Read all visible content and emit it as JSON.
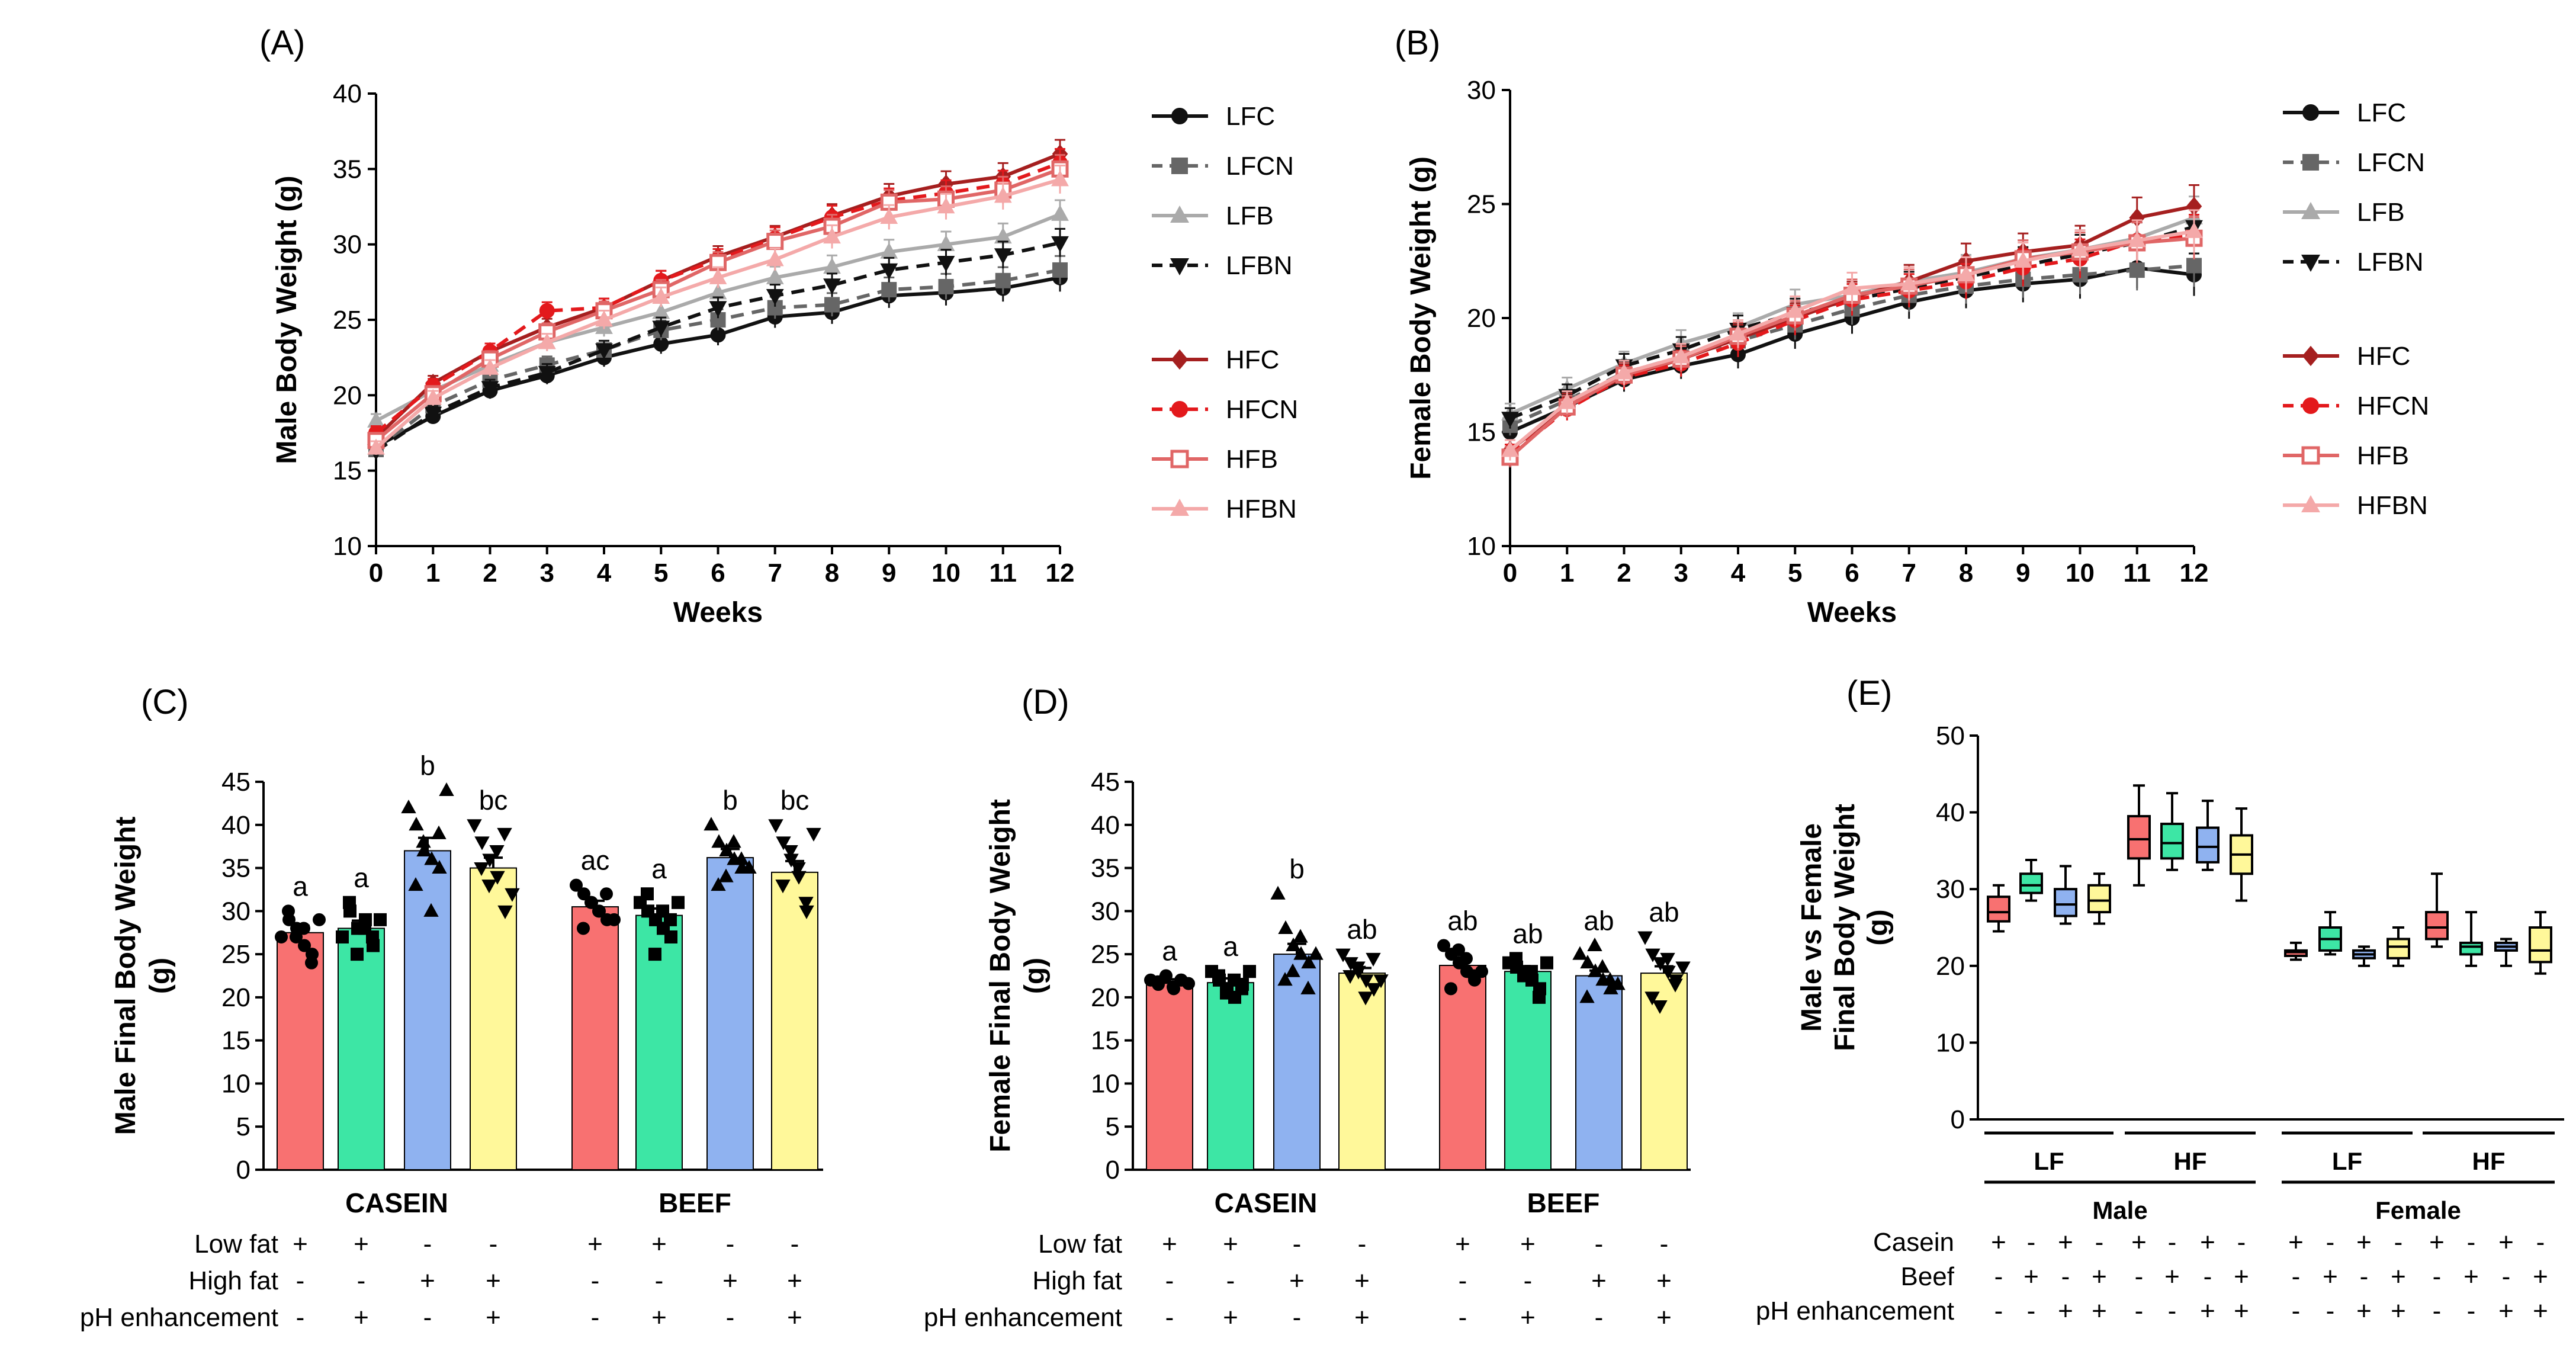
{
  "chart_data": [
    {
      "panel": "(A)",
      "type": "line",
      "ylabel": "Male Body Weight (g)",
      "xlabel": "Weeks",
      "ylim": [
        10,
        40
      ],
      "yticks": [
        10,
        15,
        20,
        25,
        30,
        35,
        40
      ],
      "x": [
        0,
        1,
        2,
        3,
        4,
        5,
        6,
        7,
        8,
        9,
        10,
        11,
        12
      ],
      "series": [
        {
          "name": "LFC",
          "color": "#111111",
          "dash": "solid",
          "marker": "circle",
          "values": [
            16.6,
            18.6,
            20.3,
            21.3,
            22.5,
            23.4,
            24.0,
            25.2,
            25.5,
            26.6,
            26.8,
            27.1,
            27.8
          ]
        },
        {
          "name": "LFCN",
          "color": "#666666",
          "dash": "dashed",
          "marker": "square",
          "values": [
            16.4,
            19.3,
            21.0,
            22.0,
            23.0,
            24.3,
            25.0,
            25.8,
            26.0,
            27.0,
            27.2,
            27.6,
            28.3
          ]
        },
        {
          "name": "LFB",
          "color": "#aaaaaa",
          "dash": "solid",
          "marker": "triangle",
          "values": [
            18.3,
            20.3,
            22.0,
            23.5,
            24.5,
            25.5,
            26.8,
            27.8,
            28.5,
            29.5,
            30.0,
            30.5,
            32.0
          ]
        },
        {
          "name": "LFBN",
          "color": "#111111",
          "dash": "dashed",
          "marker": "tri-down",
          "values": [
            16.3,
            18.8,
            20.5,
            21.5,
            23.0,
            24.5,
            25.8,
            26.6,
            27.3,
            28.3,
            28.8,
            29.3,
            30.1
          ]
        },
        {
          "name": "HFC",
          "color": "#a51f1f",
          "dash": "solid",
          "marker": "diamond",
          "values": [
            17.2,
            20.8,
            22.9,
            24.5,
            25.8,
            27.6,
            29.2,
            30.5,
            31.9,
            33.2,
            34.0,
            34.5,
            36.0
          ]
        },
        {
          "name": "HFCN",
          "color": "#e3191c",
          "dash": "dashed",
          "marker": "circle",
          "values": [
            17.5,
            20.6,
            22.9,
            25.6,
            25.8,
            27.6,
            29.0,
            30.4,
            31.8,
            32.9,
            33.4,
            34.0,
            35.4
          ]
        },
        {
          "name": "HFB",
          "color": "#e06666",
          "dash": "solid",
          "marker": "square-open",
          "values": [
            17.0,
            20.1,
            22.4,
            24.2,
            25.6,
            27.0,
            28.8,
            30.2,
            31.2,
            32.8,
            33.0,
            33.6,
            35.0
          ]
        },
        {
          "name": "HFBN",
          "color": "#f4a9a9",
          "dash": "solid",
          "marker": "triangle",
          "values": [
            16.5,
            19.8,
            21.8,
            23.5,
            25.0,
            26.5,
            27.8,
            29.0,
            30.5,
            31.8,
            32.5,
            33.2,
            34.3
          ]
        }
      ]
    },
    {
      "panel": "(B)",
      "type": "line",
      "ylabel": "Female Body Weight (g)",
      "xlabel": "Weeks",
      "ylim": [
        10,
        30
      ],
      "yticks": [
        10,
        15,
        20,
        25,
        30
      ],
      "x": [
        0,
        1,
        2,
        3,
        4,
        5,
        6,
        7,
        8,
        9,
        10,
        11,
        12
      ],
      "series": [
        {
          "name": "LFC",
          "color": "#111111",
          "dash": "solid",
          "marker": "circle",
          "values": [
            15.0,
            16.1,
            17.3,
            17.9,
            18.4,
            19.3,
            20.0,
            20.7,
            21.2,
            21.5,
            21.7,
            22.2,
            21.9
          ]
        },
        {
          "name": "LFCN",
          "color": "#666666",
          "dash": "dashed",
          "marker": "square",
          "values": [
            15.3,
            16.4,
            17.6,
            18.3,
            19.0,
            19.7,
            20.4,
            21.0,
            21.4,
            21.7,
            21.9,
            22.1,
            22.3
          ]
        },
        {
          "name": "LFB",
          "color": "#aaaaaa",
          "dash": "solid",
          "marker": "triangle",
          "values": [
            15.8,
            16.9,
            18.0,
            18.9,
            19.6,
            20.6,
            21.0,
            21.6,
            22.0,
            22.6,
            23.0,
            23.5,
            24.4
          ]
        },
        {
          "name": "LFBN",
          "color": "#111111",
          "dash": "dashed",
          "marker": "tri-down",
          "values": [
            15.6,
            16.6,
            17.9,
            18.6,
            19.5,
            20.2,
            20.8,
            21.3,
            21.8,
            22.3,
            22.8,
            23.3,
            24.0
          ]
        },
        {
          "name": "HFC",
          "color": "#a51f1f",
          "dash": "solid",
          "marker": "diamond",
          "values": [
            14.2,
            16.2,
            17.4,
            18.2,
            19.1,
            20.0,
            20.9,
            21.6,
            22.5,
            22.9,
            23.2,
            24.4,
            24.9
          ]
        },
        {
          "name": "HFCN",
          "color": "#e3191c",
          "dash": "dashed",
          "marker": "circle",
          "values": [
            14.0,
            16.0,
            17.4,
            18.0,
            18.9,
            19.9,
            20.8,
            21.2,
            21.6,
            22.2,
            22.6,
            23.4,
            23.6
          ]
        },
        {
          "name": "HFB",
          "color": "#e06666",
          "dash": "solid",
          "marker": "square-open",
          "values": [
            13.9,
            16.1,
            17.5,
            18.2,
            19.2,
            20.1,
            21.0,
            21.4,
            21.9,
            22.6,
            22.9,
            23.3,
            23.5
          ]
        },
        {
          "name": "HFBN",
          "color": "#f4a9a9",
          "dash": "solid",
          "marker": "triangle",
          "values": [
            14.2,
            16.3,
            17.6,
            18.3,
            19.3,
            20.3,
            21.3,
            21.5,
            21.9,
            22.5,
            23.0,
            23.4,
            23.8
          ]
        }
      ]
    },
    {
      "panel": "(C)",
      "type": "bar",
      "ylabel": [
        "Male Final Body Weight",
        "(g)"
      ],
      "ylim": [
        0,
        45
      ],
      "yticks": [
        0,
        5,
        10,
        15,
        20,
        25,
        30,
        35,
        40,
        45
      ],
      "groups": [
        "CASEIN",
        "BEEF"
      ],
      "bars": [
        {
          "group": "CASEIN",
          "value": 27.5,
          "sem": 0.8,
          "color": "#f87171",
          "marker": "circle",
          "letter": "a",
          "points": [
            27,
            29,
            28,
            26,
            25,
            30,
            27,
            28,
            24,
            29
          ]
        },
        {
          "group": "CASEIN",
          "value": 28.0,
          "sem": 0.9,
          "color": "#3de6a5",
          "marker": "square",
          "letter": "a",
          "points": [
            27,
            30,
            28,
            29,
            26,
            31,
            25,
            28,
            27,
            29
          ]
        },
        {
          "group": "CASEIN",
          "value": 37.0,
          "sem": 1.5,
          "color": "#8fb2f0",
          "marker": "triangle",
          "letter": "b",
          "points": [
            42,
            40,
            37,
            36,
            35,
            33,
            38,
            30,
            39,
            44
          ]
        },
        {
          "group": "CASEIN",
          "value": 35.0,
          "sem": 1.2,
          "color": "#fff89a",
          "marker": "tri-down",
          "letter": "bc",
          "points": [
            40,
            38,
            36,
            34,
            30,
            35,
            33,
            37,
            39,
            32
          ]
        },
        {
          "group": "BEEF",
          "value": 30.5,
          "sem": 0.7,
          "color": "#f87171",
          "marker": "circle",
          "letter": "ac",
          "points": [
            33,
            32,
            31,
            30,
            29,
            28,
            31,
            30,
            32,
            29
          ]
        },
        {
          "group": "BEEF",
          "value": 29.5,
          "sem": 0.8,
          "color": "#3de6a5",
          "marker": "square",
          "letter": "a",
          "points": [
            31,
            30,
            29,
            28,
            27,
            32,
            25,
            30,
            29,
            31
          ]
        },
        {
          "group": "BEEF",
          "value": 36.2,
          "sem": 1.0,
          "color": "#8fb2f0",
          "marker": "triangle",
          "letter": "b",
          "points": [
            40,
            38,
            37,
            36,
            35,
            33,
            34,
            38,
            36,
            35
          ]
        },
        {
          "group": "BEEF",
          "value": 34.5,
          "sem": 1.3,
          "color": "#fff89a",
          "marker": "tri-down",
          "letter": "bc",
          "points": [
            40,
            38,
            36,
            34,
            30,
            33,
            37,
            35,
            31,
            39
          ]
        }
      ],
      "design": [
        {
          "label": "Low fat",
          "marks": [
            "+",
            "+",
            "-",
            "-",
            "+",
            "+",
            "-",
            "-"
          ]
        },
        {
          "label": "High fat",
          "marks": [
            "-",
            "-",
            "+",
            "+",
            "-",
            "-",
            "+",
            "+"
          ]
        },
        {
          "label": "pH enhancement",
          "marks": [
            "-",
            "+",
            "-",
            "+",
            "-",
            "+",
            "-",
            "+"
          ]
        }
      ]
    },
    {
      "panel": "(D)",
      "type": "bar",
      "ylabel": [
        "Female Final Body Weight",
        "(g)"
      ],
      "ylim": [
        0,
        45
      ],
      "yticks": [
        0,
        5,
        10,
        15,
        20,
        25,
        30,
        35,
        40,
        45
      ],
      "groups": [
        "CASEIN",
        "BEEF"
      ],
      "bars": [
        {
          "group": "CASEIN",
          "value": 21.8,
          "sem": 0.3,
          "color": "#f87171",
          "marker": "circle",
          "letter": "a",
          "points": [
            22,
            21.5,
            22.5,
            21,
            22,
            21.8,
            22.3,
            21.2,
            22,
            21.6
          ]
        },
        {
          "group": "CASEIN",
          "value": 21.7,
          "sem": 0.5,
          "color": "#3de6a5",
          "marker": "square",
          "letter": "a",
          "points": [
            23,
            22,
            21,
            20,
            21.5,
            22.5,
            20.5,
            22,
            21,
            23
          ]
        },
        {
          "group": "CASEIN",
          "value": 25.0,
          "sem": 1.2,
          "color": "#8fb2f0",
          "marker": "triangle",
          "letter": "b",
          "points": [
            32,
            28,
            26,
            25,
            24,
            22,
            23,
            27,
            21,
            25
          ]
        },
        {
          "group": "CASEIN",
          "value": 22.8,
          "sem": 0.6,
          "color": "#fff89a",
          "marker": "tri-down",
          "letter": "ab",
          "points": [
            25,
            24,
            23,
            22,
            21,
            22.5,
            23.5,
            20,
            24.5,
            22
          ]
        },
        {
          "group": "BEEF",
          "value": 23.7,
          "sem": 0.7,
          "color": "#f87171",
          "marker": "circle",
          "letter": "ab",
          "points": [
            26,
            25,
            24,
            23,
            22,
            21,
            25.5,
            24.5,
            22.5,
            23
          ]
        },
        {
          "group": "BEEF",
          "value": 23.0,
          "sem": 0.6,
          "color": "#3de6a5",
          "marker": "square",
          "letter": "ab",
          "points": [
            24,
            23.5,
            23,
            22,
            21,
            24.5,
            22.5,
            23,
            20,
            24
          ]
        },
        {
          "group": "BEEF",
          "value": 22.5,
          "sem": 0.6,
          "color": "#8fb2f0",
          "marker": "triangle",
          "letter": "ab",
          "points": [
            25,
            24,
            23,
            22,
            21,
            20,
            26,
            23.5,
            22,
            21.5
          ]
        },
        {
          "group": "BEEF",
          "value": 22.8,
          "sem": 0.8,
          "color": "#fff89a",
          "marker": "tri-down",
          "letter": "ab",
          "points": [
            27,
            25,
            24,
            23,
            22,
            20,
            19,
            24.5,
            21.5,
            23.5
          ]
        }
      ],
      "design": [
        {
          "label": "Low fat",
          "marks": [
            "+",
            "+",
            "-",
            "-",
            "+",
            "+",
            "-",
            "-"
          ]
        },
        {
          "label": "High fat",
          "marks": [
            "-",
            "-",
            "+",
            "+",
            "-",
            "-",
            "+",
            "+"
          ]
        },
        {
          "label": "pH enhancement",
          "marks": [
            "-",
            "+",
            "-",
            "+",
            "-",
            "+",
            "-",
            "+"
          ]
        }
      ]
    },
    {
      "panel": "(E)",
      "type": "boxplot",
      "ylabel": [
        "Male vs Female",
        "Final Body Weight",
        "(g)"
      ],
      "ylim": [
        0,
        50
      ],
      "yticks": [
        0,
        10,
        20,
        30,
        40,
        50
      ],
      "boxes": [
        {
          "color": "#f87171",
          "min": 24.5,
          "q1": 25.8,
          "median": 27.0,
          "q3": 29.0,
          "max": 30.5
        },
        {
          "color": "#3de6a5",
          "min": 28.5,
          "q1": 29.5,
          "median": 30.5,
          "q3": 32.0,
          "max": 33.8
        },
        {
          "color": "#8fb2f0",
          "min": 25.5,
          "q1": 26.5,
          "median": 28.0,
          "q3": 30.0,
          "max": 33.0
        },
        {
          "color": "#fff89a",
          "min": 25.5,
          "q1": 27.0,
          "median": 28.5,
          "q3": 30.5,
          "max": 32.0
        },
        {
          "color": "#f87171",
          "min": 30.5,
          "q1": 34.0,
          "median": 36.5,
          "q3": 39.5,
          "max": 43.5
        },
        {
          "color": "#3de6a5",
          "min": 32.5,
          "q1": 34.0,
          "median": 36.0,
          "q3": 38.5,
          "max": 42.5
        },
        {
          "color": "#8fb2f0",
          "min": 32.5,
          "q1": 33.5,
          "median": 35.5,
          "q3": 38.0,
          "max": 41.5
        },
        {
          "color": "#fff89a",
          "min": 28.5,
          "q1": 32.0,
          "median": 34.5,
          "q3": 37.0,
          "max": 40.5
        },
        {
          "color": "#f87171",
          "min": 20.8,
          "q1": 21.3,
          "median": 21.8,
          "q3": 22.0,
          "max": 23.0
        },
        {
          "color": "#3de6a5",
          "min": 21.5,
          "q1": 22.0,
          "median": 23.5,
          "q3": 25.0,
          "max": 27.0
        },
        {
          "color": "#8fb2f0",
          "min": 20.0,
          "q1": 21.0,
          "median": 21.5,
          "q3": 22.0,
          "max": 22.5
        },
        {
          "color": "#fff89a",
          "min": 20.0,
          "q1": 21.0,
          "median": 22.5,
          "q3": 23.5,
          "max": 25.0
        },
        {
          "color": "#f87171",
          "min": 22.5,
          "q1": 23.5,
          "median": 25.0,
          "q3": 27.0,
          "max": 32.0
        },
        {
          "color": "#3de6a5",
          "min": 20.0,
          "q1": 21.5,
          "median": 22.5,
          "q3": 23.0,
          "max": 27.0
        },
        {
          "color": "#8fb2f0",
          "min": 20.0,
          "q1": 22.0,
          "median": 22.5,
          "q3": 23.0,
          "max": 23.5
        },
        {
          "color": "#fff89a",
          "min": 19.0,
          "q1": 20.5,
          "median": 22.0,
          "q3": 25.0,
          "max": 27.0
        }
      ],
      "brackets": {
        "sub": [
          "LF",
          "HF",
          "LF",
          "HF"
        ],
        "main": [
          "Male",
          "Female"
        ]
      },
      "design": [
        {
          "label": "Casein",
          "marks": [
            "+",
            "-",
            "+",
            "-",
            "+",
            "-",
            "+",
            "-",
            "+",
            "-",
            "+",
            "-",
            "+",
            "-",
            "+",
            "-"
          ]
        },
        {
          "label": "Beef",
          "marks": [
            "-",
            "+",
            "-",
            "+",
            "-",
            "+",
            "-",
            "+",
            "-",
            "+",
            "-",
            "+",
            "-",
            "+",
            "-",
            "+"
          ]
        },
        {
          "label": "pH enhancement",
          "marks": [
            "-",
            "-",
            "+",
            "+",
            "-",
            "-",
            "+",
            "+",
            "-",
            "-",
            "+",
            "+",
            "-",
            "-",
            "+",
            "+"
          ]
        }
      ]
    }
  ]
}
